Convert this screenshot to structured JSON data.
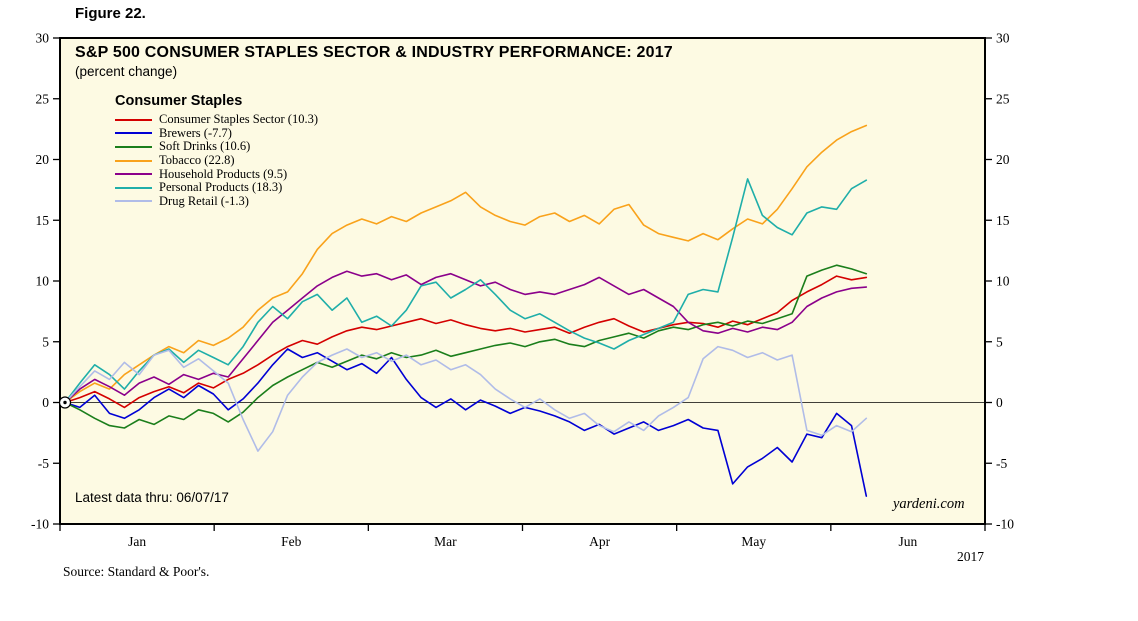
{
  "figure_label": "Figure 22.",
  "footer": {
    "latest_data": "Latest data thru: 06/07/17",
    "watermark": "yardeni.com",
    "year_label": "2017",
    "source": "Source: Standard & Poor's."
  },
  "chart_data": {
    "type": "line",
    "title": "S&P 500 CONSUMER STAPLES SECTOR & INDUSTRY PERFORMANCE: 2017",
    "subtitle": "(percent change)",
    "legend_title": "Consumer Staples",
    "xlabel": "",
    "ylabel": "",
    "ylim": [
      -10,
      30
    ],
    "yticks": [
      30,
      25,
      20,
      15,
      10,
      5,
      0,
      -5,
      -10
    ],
    "x_months": [
      "Jan",
      "Feb",
      "Mar",
      "Apr",
      "May",
      "Jun"
    ],
    "axis_span_months": 6,
    "data_span_months": 5.23,
    "x_range": [
      "Jan 2017",
      "Jun 7, 2017"
    ],
    "grid": false,
    "legend_position": "upper-left-inside",
    "plot_bg_color": "#FDFAE3",
    "axis_color": "#000000",
    "series": [
      {
        "id": "consumer-staples-sector",
        "name": "Consumer Staples Sector (10.3)",
        "final_value": 10.3,
        "color": "#D40000",
        "values": [
          0,
          0.4,
          0.9,
          0.3,
          -0.4,
          0.4,
          0.9,
          1.3,
          0.8,
          1.6,
          1.2,
          1.9,
          2.4,
          3.1,
          3.9,
          4.6,
          5.1,
          4.8,
          5.4,
          5.9,
          6.2,
          6.0,
          6.3,
          6.6,
          6.9,
          6.5,
          6.8,
          6.4,
          6.1,
          5.9,
          6.1,
          5.8,
          6.0,
          6.2,
          5.7,
          6.2,
          6.6,
          6.9,
          6.3,
          5.8,
          6.1,
          6.4,
          6.6,
          6.5,
          6.2,
          6.7,
          6.4,
          6.9,
          7.4,
          8.4,
          9.1,
          9.7,
          10.4,
          10.1,
          10.3
        ]
      },
      {
        "id": "brewers",
        "name": "Brewers (-7.7)",
        "final_value": -7.7,
        "color": "#0000D4",
        "values": [
          0,
          -0.4,
          0.6,
          -0.9,
          -1.3,
          -0.6,
          0.4,
          1.1,
          0.4,
          1.4,
          0.7,
          -0.6,
          0.3,
          1.6,
          3.1,
          4.4,
          3.7,
          4.1,
          3.4,
          2.7,
          3.2,
          2.4,
          3.7,
          1.9,
          0.4,
          -0.4,
          0.3,
          -0.6,
          0.2,
          -0.3,
          -0.9,
          -0.4,
          -0.7,
          -1.1,
          -1.6,
          -2.3,
          -1.8,
          -2.6,
          -2.1,
          -1.6,
          -2.3,
          -1.9,
          -1.4,
          -2.1,
          -2.3,
          -6.7,
          -5.3,
          -4.6,
          -3.7,
          -4.9,
          -2.6,
          -2.9,
          -0.9,
          -1.9,
          -7.7
        ]
      },
      {
        "id": "soft-drinks",
        "name": "Soft Drinks (10.6)",
        "final_value": 10.6,
        "color": "#1B7E1B",
        "values": [
          0,
          -0.6,
          -1.3,
          -1.9,
          -2.1,
          -1.4,
          -1.8,
          -1.1,
          -1.4,
          -0.6,
          -0.9,
          -1.6,
          -0.8,
          0.4,
          1.4,
          2.1,
          2.7,
          3.3,
          2.9,
          3.4,
          3.9,
          3.6,
          4.1,
          3.7,
          3.9,
          4.3,
          3.8,
          4.1,
          4.4,
          4.7,
          4.9,
          4.6,
          5.0,
          5.2,
          4.8,
          4.6,
          5.1,
          5.4,
          5.7,
          5.3,
          5.9,
          6.2,
          6.0,
          6.4,
          6.6,
          6.3,
          6.7,
          6.5,
          6.9,
          7.3,
          10.4,
          10.9,
          11.3,
          11.0,
          10.6
        ]
      },
      {
        "id": "tobacco",
        "name": "Tobacco (22.8)",
        "final_value": 22.8,
        "color": "#F9A21B",
        "values": [
          0,
          0.9,
          1.6,
          1.1,
          2.3,
          3.1,
          3.9,
          4.6,
          4.1,
          5.1,
          4.7,
          5.3,
          6.2,
          7.6,
          8.6,
          9.1,
          10.6,
          12.6,
          13.9,
          14.6,
          15.1,
          14.7,
          15.3,
          14.9,
          15.6,
          16.1,
          16.6,
          17.3,
          16.1,
          15.4,
          14.9,
          14.6,
          15.3,
          15.6,
          14.9,
          15.4,
          14.7,
          15.9,
          16.3,
          14.6,
          13.9,
          13.6,
          13.3,
          13.9,
          13.4,
          14.3,
          15.1,
          14.7,
          15.9,
          17.6,
          19.4,
          20.6,
          21.6,
          22.3,
          22.8
        ]
      },
      {
        "id": "household-products",
        "name": "Household Products (9.5)",
        "final_value": 9.5,
        "color": "#8B008B",
        "values": [
          0,
          1.1,
          1.9,
          1.3,
          0.6,
          1.6,
          2.1,
          1.5,
          2.3,
          1.9,
          2.4,
          2.1,
          3.6,
          5.1,
          6.6,
          7.6,
          8.6,
          9.6,
          10.3,
          10.8,
          10.4,
          10.6,
          10.1,
          10.5,
          9.7,
          10.3,
          10.6,
          10.1,
          9.6,
          9.9,
          9.3,
          8.9,
          9.1,
          8.9,
          9.3,
          9.7,
          10.3,
          9.6,
          8.9,
          9.3,
          8.6,
          7.9,
          6.6,
          5.9,
          5.7,
          6.1,
          5.8,
          6.2,
          6.0,
          6.6,
          7.9,
          8.6,
          9.1,
          9.4,
          9.5
        ]
      },
      {
        "id": "personal-products",
        "name": "Personal Products (18.3)",
        "final_value": 18.3,
        "color": "#1FAEA9",
        "values": [
          0,
          1.6,
          3.1,
          2.3,
          1.1,
          2.6,
          3.9,
          4.4,
          3.3,
          4.3,
          3.7,
          3.1,
          4.6,
          6.6,
          7.9,
          6.9,
          8.3,
          8.9,
          7.6,
          8.6,
          6.6,
          7.1,
          6.3,
          7.6,
          9.6,
          9.9,
          8.6,
          9.3,
          10.1,
          8.9,
          7.6,
          6.9,
          7.3,
          6.6,
          5.9,
          5.3,
          4.9,
          4.4,
          5.1,
          5.6,
          6.1,
          6.6,
          8.9,
          9.3,
          9.1,
          13.6,
          18.4,
          15.4,
          14.4,
          13.8,
          15.6,
          16.1,
          15.9,
          17.6,
          18.3
        ]
      },
      {
        "id": "drug-retail",
        "name": "Drug Retail (-1.3)",
        "final_value": -1.3,
        "color": "#B0BCE8",
        "values": [
          0,
          1.3,
          2.6,
          1.9,
          3.3,
          2.3,
          3.9,
          4.3,
          2.9,
          3.6,
          2.6,
          1.6,
          -1.4,
          -4.0,
          -2.4,
          0.6,
          2.1,
          3.3,
          3.9,
          4.4,
          3.7,
          4.1,
          3.4,
          3.9,
          3.1,
          3.5,
          2.7,
          3.1,
          2.3,
          1.1,
          0.3,
          -0.4,
          0.3,
          -0.6,
          -1.3,
          -0.9,
          -1.9,
          -2.4,
          -1.6,
          -2.3,
          -1.1,
          -0.4,
          0.4,
          3.6,
          4.6,
          4.3,
          3.7,
          4.1,
          3.5,
          3.9,
          -2.3,
          -2.7,
          -1.9,
          -2.4,
          -1.3
        ]
      }
    ]
  }
}
